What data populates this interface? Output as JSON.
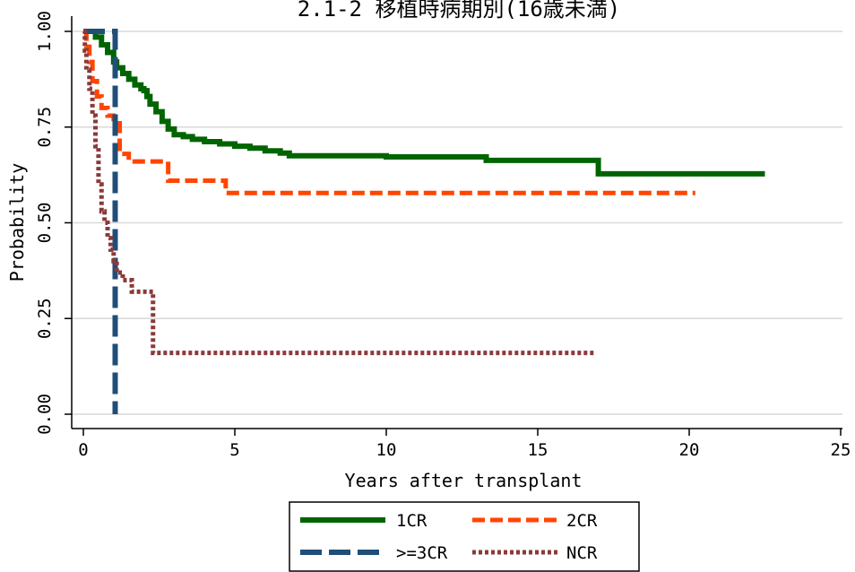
{
  "chart_data": {
    "type": "line",
    "title": "2.1-2 移植時病期別(16歳未満)",
    "xlabel": "Years after transplant",
    "ylabel": "Probability",
    "xlim": [
      0,
      25
    ],
    "ylim": [
      0,
      1
    ],
    "xticks": [
      0,
      5,
      10,
      15,
      20,
      25
    ],
    "xtick_labels": [
      "0",
      "5",
      "10",
      "15",
      "20",
      "25"
    ],
    "yticks": [
      0,
      0.25,
      0.5,
      0.75,
      1.0
    ],
    "ytick_labels": [
      "0.00",
      "0.25",
      "0.50",
      "0.75",
      "1.00"
    ],
    "grid": true,
    "legend_position": "bottom-center",
    "series": [
      {
        "name": "1CR",
        "color": "#006400",
        "style": "solid",
        "x": [
          0,
          0.2,
          0.4,
          0.6,
          0.8,
          1.0,
          1.1,
          1.3,
          1.5,
          1.7,
          1.9,
          2.0,
          2.1,
          2.2,
          2.4,
          2.6,
          2.8,
          3.0,
          3.3,
          3.6,
          4.0,
          4.5,
          5.0,
          5.5,
          6.0,
          6.5,
          6.8,
          10,
          13.3,
          17.0,
          17.0,
          22.5
        ],
        "y": [
          1.0,
          1.0,
          0.985,
          0.965,
          0.945,
          0.92,
          0.905,
          0.89,
          0.875,
          0.86,
          0.85,
          0.845,
          0.83,
          0.81,
          0.79,
          0.765,
          0.745,
          0.73,
          0.725,
          0.718,
          0.712,
          0.706,
          0.7,
          0.695,
          0.688,
          0.682,
          0.675,
          0.672,
          0.663,
          0.66,
          0.628,
          0.628
        ]
      },
      {
        "name": "2CR",
        "color": "#FF4500",
        "style": "dash",
        "x": [
          0,
          0.1,
          0.2,
          0.3,
          0.45,
          0.6,
          0.8,
          1.0,
          1.2,
          1.5,
          2.0,
          2.7,
          2.8,
          4.5,
          4.7,
          20.2
        ],
        "y": [
          1.0,
          0.96,
          0.92,
          0.87,
          0.83,
          0.8,
          0.78,
          0.76,
          0.68,
          0.66,
          0.66,
          0.66,
          0.61,
          0.61,
          0.578,
          0.578
        ]
      },
      {
        "name": ">=3CR",
        "color": "#1F4E79",
        "style": "longdash",
        "x": [
          0,
          1.05,
          1.05,
          1.05
        ],
        "y": [
          1.0,
          1.0,
          0.6,
          0.0
        ]
      },
      {
        "name": "NCR",
        "color": "#8B3A3A",
        "style": "dot",
        "x": [
          0,
          0.05,
          0.1,
          0.2,
          0.3,
          0.4,
          0.5,
          0.6,
          0.7,
          0.8,
          0.9,
          1.0,
          1.1,
          1.3,
          1.6,
          2.0,
          2.2,
          2.3,
          16.9
        ],
        "y": [
          1.0,
          0.95,
          0.9,
          0.85,
          0.78,
          0.7,
          0.6,
          0.53,
          0.5,
          0.46,
          0.43,
          0.4,
          0.37,
          0.35,
          0.32,
          0.32,
          0.32,
          0.16,
          0.16
        ]
      }
    ]
  }
}
